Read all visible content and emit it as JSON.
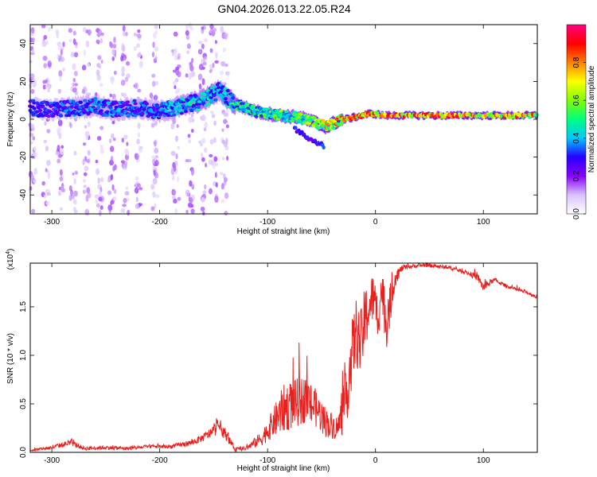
{
  "title": "GN04.2026.013.22.05.R24",
  "chart_data": [
    {
      "type": "heatmap",
      "name": "spectrogram",
      "xlabel": "Height of straight line (km)",
      "ylabel": "Frequency (Hz)",
      "xlim": [
        -320,
        150
      ],
      "ylim": [
        -50,
        50
      ],
      "xticks": [
        -300,
        -200,
        -100,
        0,
        100
      ],
      "yticks": [
        -40,
        -20,
        0,
        20,
        40
      ],
      "colorbar": {
        "label": "Normalized spectral amplitude",
        "range": [
          0.0,
          1.0
        ],
        "ticks": [
          0.0,
          0.2,
          0.4,
          0.6,
          0.8
        ],
        "colors": [
          "#ffffff",
          "#d9c2ff",
          "#8a00ff",
          "#2600ff",
          "#00c8ff",
          "#00ff80",
          "#7fff00",
          "#ffff00",
          "#ff8000",
          "#ff0000",
          "#ff0080"
        ]
      },
      "ridge": {
        "x": [
          -320,
          -300,
          -280,
          -260,
          -240,
          -220,
          -200,
          -180,
          -160,
          -145,
          -130,
          -110,
          -90,
          -70,
          -55,
          -45,
          -35,
          -20,
          -5,
          10,
          30,
          50,
          70,
          90,
          110,
          130,
          150
        ],
        "y": [
          6,
          5,
          6,
          7,
          5,
          6,
          4,
          7,
          10,
          15,
          8,
          4,
          2,
          1,
          -2,
          -4,
          -1,
          1,
          3,
          2,
          2,
          2,
          2,
          2,
          2,
          2,
          2
        ],
        "amplitude": [
          0.35,
          0.35,
          0.4,
          0.4,
          0.4,
          0.4,
          0.4,
          0.45,
          0.5,
          0.45,
          0.55,
          0.55,
          0.6,
          0.6,
          0.7,
          0.8,
          0.85,
          0.9,
          0.95,
          0.95,
          0.95,
          0.95,
          0.98,
          0.95,
          0.9,
          0.9,
          0.88
        ]
      },
      "branch": {
        "x": [
          -75,
          -65,
          -55,
          -48
        ],
        "y": [
          -5,
          -9,
          -12,
          -14
        ]
      }
    },
    {
      "type": "line",
      "name": "snr",
      "xlabel": "Height of straight line (km)",
      "ylabel": "SNR (10 * v/v)",
      "y_multiplier": "(x10",
      "y_multiplier_exp": "4",
      "y_multiplier_close": ")",
      "xlim": [
        -320,
        150
      ],
      "ylim": [
        0,
        1.95
      ],
      "xticks": [
        -300,
        -200,
        -100,
        0,
        100
      ],
      "yticks": [
        0.0,
        0.5,
        1.0,
        1.5
      ],
      "ytick_labels": [
        "0.0",
        "0.5",
        "1.0",
        "1.5"
      ],
      "color": "#e8211f",
      "series": {
        "x": [
          -320,
          -300,
          -282,
          -270,
          -250,
          -230,
          -210,
          -190,
          -170,
          -160,
          -150,
          -145,
          -140,
          -130,
          -120,
          -105,
          -95,
          -85,
          -75,
          -65,
          -55,
          -45,
          -35,
          -28,
          -22,
          -18,
          -14,
          -10,
          -6,
          -2,
          2,
          6,
          10,
          14,
          18,
          25,
          35,
          45,
          55,
          70,
          85,
          95,
          100,
          110,
          120,
          130,
          140,
          150
        ],
        "y": [
          0.02,
          0.05,
          0.1,
          0.04,
          0.05,
          0.04,
          0.06,
          0.06,
          0.1,
          0.15,
          0.22,
          0.28,
          0.2,
          0.03,
          0.04,
          0.15,
          0.3,
          0.45,
          0.5,
          0.55,
          0.45,
          0.3,
          0.25,
          0.5,
          1.0,
          1.25,
          1.1,
          1.35,
          1.5,
          1.6,
          1.4,
          1.7,
          1.3,
          1.55,
          1.8,
          1.9,
          1.92,
          1.93,
          1.92,
          1.9,
          1.85,
          1.8,
          1.7,
          1.78,
          1.72,
          1.68,
          1.65,
          1.6
        ]
      },
      "noise_amplitude": [
        0.01,
        0.02,
        0.03,
        0.02,
        0.02,
        0.02,
        0.02,
        0.02,
        0.03,
        0.04,
        0.06,
        0.08,
        0.06,
        0.02,
        0.02,
        0.08,
        0.15,
        0.25,
        0.25,
        0.25,
        0.2,
        0.15,
        0.12,
        0.3,
        0.35,
        0.35,
        0.35,
        0.35,
        0.3,
        0.25,
        0.25,
        0.25,
        0.25,
        0.2,
        0.1,
        0.03,
        0.02,
        0.02,
        0.02,
        0.02,
        0.02,
        0.04,
        0.05,
        0.02,
        0.02,
        0.02,
        0.02,
        0.02
      ]
    }
  ]
}
